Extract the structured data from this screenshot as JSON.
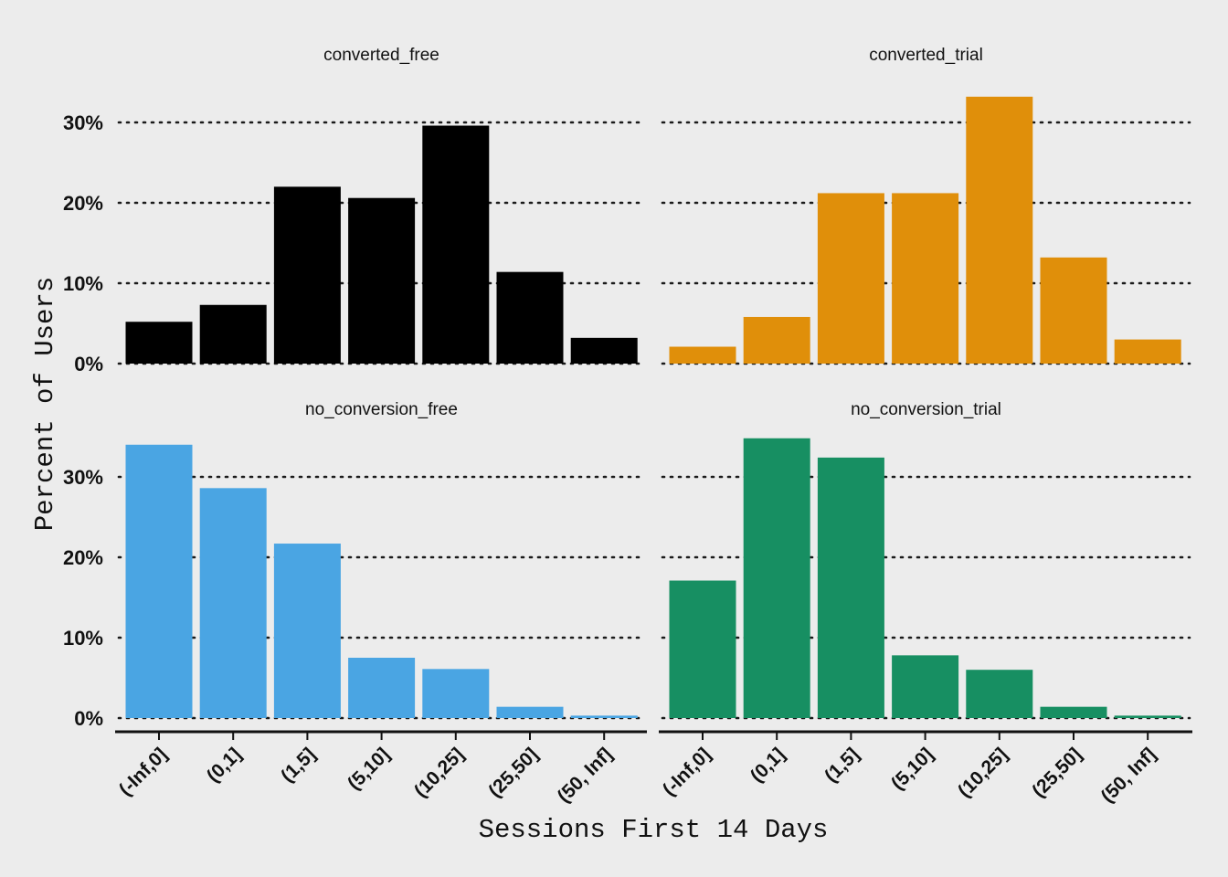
{
  "chart_data": {
    "type": "bar",
    "layout": "facet-grid-2x2",
    "xlabel": "Sessions First 14 Days",
    "ylabel": "Percent of Users",
    "ylim": [
      0,
      35
    ],
    "yticks": [
      0,
      10,
      20,
      30
    ],
    "ytick_labels": [
      "0%",
      "10%",
      "20%",
      "30%"
    ],
    "grid": "horizontal dotted",
    "categories": [
      "(-Inf,0]",
      "(0,1]",
      "(1,5]",
      "(5,10]",
      "(10,25]",
      "(25,50]",
      "(50, Inf]"
    ],
    "panels": [
      {
        "name": "converted_free",
        "color": "#000000",
        "values": [
          5.2,
          7.3,
          22.0,
          20.6,
          29.6,
          11.4,
          3.2
        ]
      },
      {
        "name": "converted_trial",
        "color": "#E08F0A",
        "values": [
          2.1,
          5.8,
          21.2,
          21.2,
          33.2,
          13.2,
          3.0
        ]
      },
      {
        "name": "no_conversion_free",
        "color": "#4AA5E3",
        "values": [
          34.0,
          28.6,
          21.7,
          7.5,
          6.1,
          1.4,
          0.3
        ]
      },
      {
        "name": "no_conversion_trial",
        "color": "#178F62",
        "values": [
          17.1,
          34.8,
          32.4,
          7.8,
          6.0,
          1.4,
          0.3
        ]
      }
    ]
  }
}
